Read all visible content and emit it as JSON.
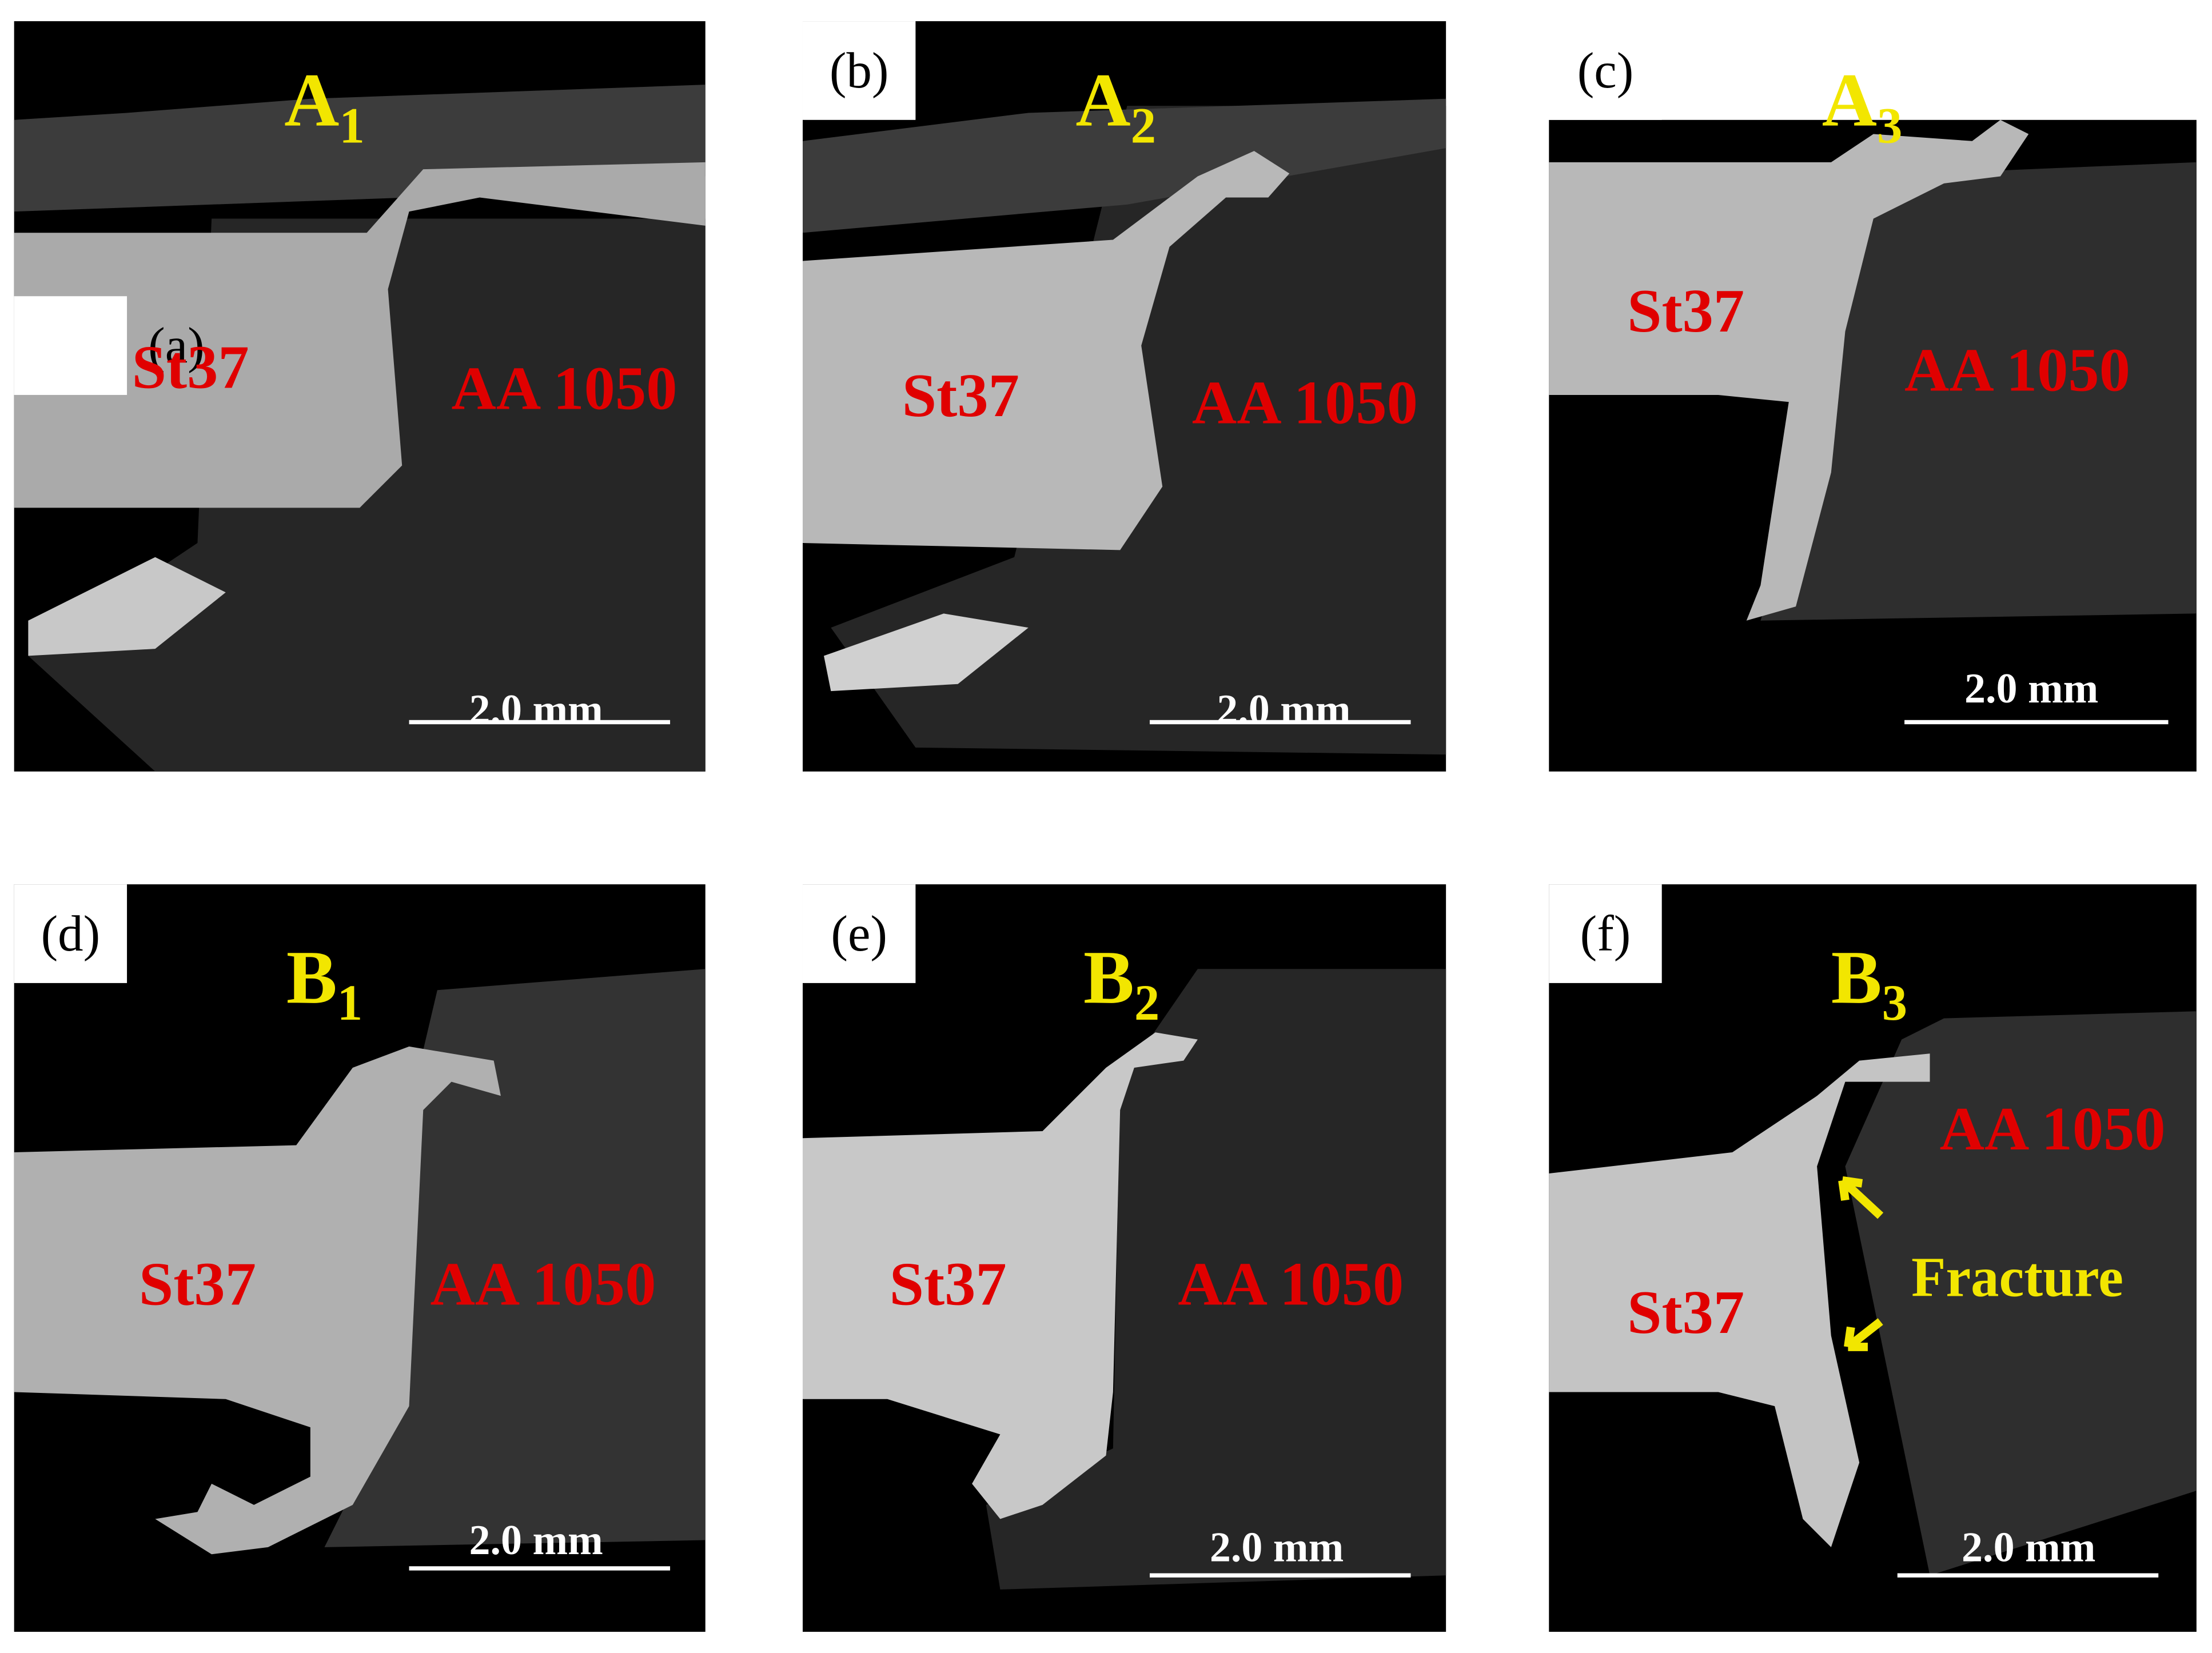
{
  "panels": [
    {
      "label": "(a)",
      "title": {
        "letter": "A",
        "sub": "1"
      },
      "steel": "St37",
      "aluminum": "AA 1050",
      "scale": "2.0 mm"
    },
    {
      "label": "(b)",
      "title": {
        "letter": "A",
        "sub": "2"
      },
      "steel": "St37",
      "aluminum": "AA 1050",
      "scale": "2.0 mm"
    },
    {
      "label": "(c)",
      "title": {
        "letter": "A",
        "sub": "3"
      },
      "steel": "St37",
      "aluminum": "AA 1050",
      "scale": "2.0 mm"
    },
    {
      "label": "(d)",
      "title": {
        "letter": "B",
        "sub": "1"
      },
      "steel": "St37",
      "aluminum": "AA 1050",
      "scale": "2.0 mm"
    },
    {
      "label": "(e)",
      "title": {
        "letter": "B",
        "sub": "2"
      },
      "steel": "St37",
      "aluminum": "AA 1050",
      "scale": "2.0 mm"
    },
    {
      "label": "(f)",
      "title": {
        "letter": "B",
        "sub": "3"
      },
      "steel": "St37",
      "aluminum": "AA 1050",
      "scale": "2.0 mm",
      "annotation": "Fracture"
    }
  ]
}
